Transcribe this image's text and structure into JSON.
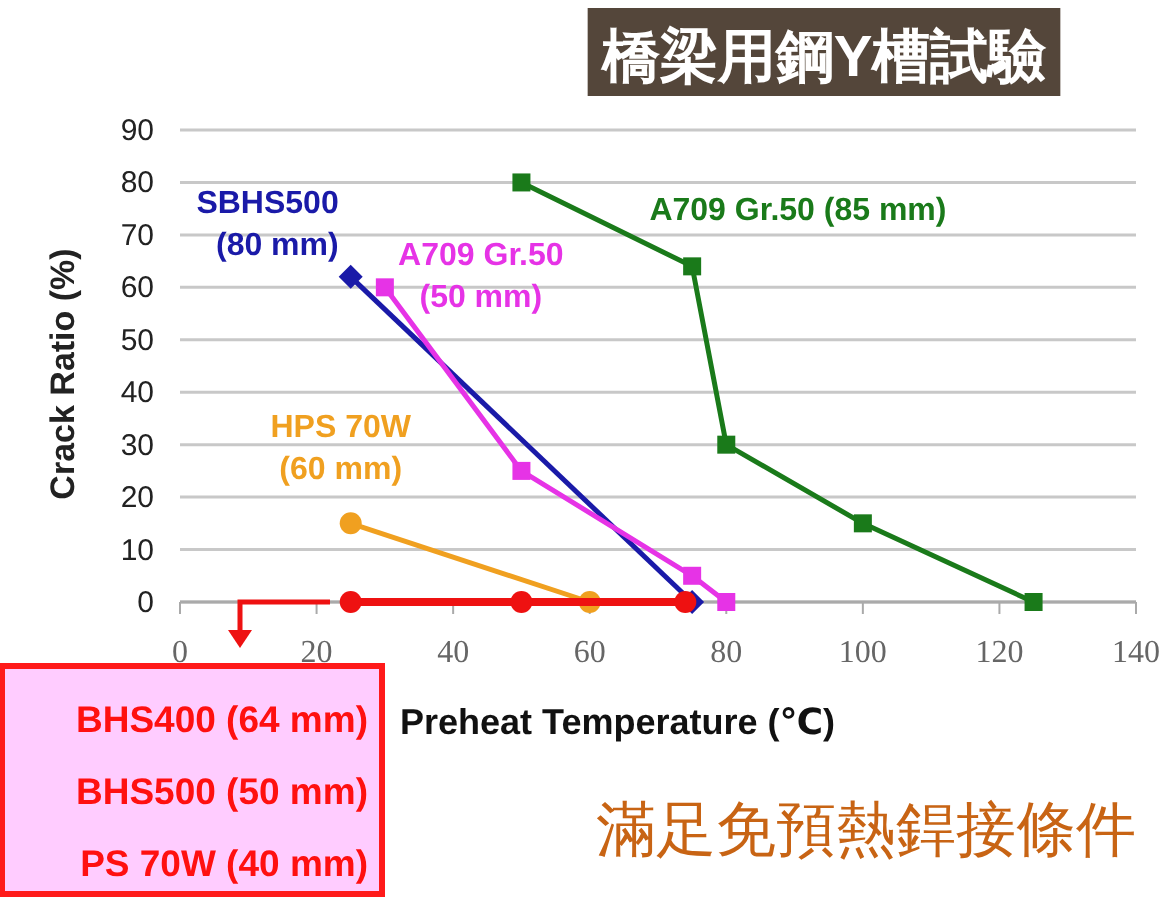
{
  "chart_data": {
    "type": "line",
    "title": "橋梁用鋼Y槽試驗",
    "xlabel": "Preheat Temperature (℃)",
    "ylabel": "Crack Ratio (%)",
    "xlim": [
      0,
      140
    ],
    "xticks": [
      0,
      20,
      40,
      60,
      80,
      100,
      120,
      140
    ],
    "ylim": [
      0,
      90
    ],
    "yticks": [
      0,
      10,
      20,
      30,
      40,
      50,
      60,
      70,
      80,
      90
    ],
    "grid": "y",
    "series": [
      {
        "name": "SBHS500 (80 mm)",
        "color": "#1a1aa8",
        "marker": "diamond",
        "x": [
          25,
          75
        ],
        "values": [
          62,
          0
        ]
      },
      {
        "name": "A709 Gr.50 (50 mm)",
        "color": "#e633e6",
        "marker": "square",
        "x": [
          30,
          50,
          75,
          80
        ],
        "values": [
          60,
          25,
          5,
          0
        ]
      },
      {
        "name": "HPS 70W (60 mm)",
        "color": "#f0a020",
        "marker": "circle",
        "x": [
          25,
          60
        ],
        "values": [
          15,
          0
        ]
      },
      {
        "color": "#ee1111",
        "marker": "circle",
        "x": [
          25,
          50,
          74
        ],
        "values": [
          0,
          0,
          0
        ]
      },
      {
        "name": "A709 Gr.50 (85 mm)",
        "color": "#1a7a1a",
        "marker": "square",
        "x": [
          50,
          75,
          80,
          100,
          125
        ],
        "values": [
          80,
          64,
          30,
          15,
          0
        ]
      }
    ],
    "annotations": [
      "BHS400 (64 mm)",
      "BHS500 (50 mm)",
      "PS 70W (40 mm)",
      "滿足免預熱銲接條件"
    ]
  }
}
